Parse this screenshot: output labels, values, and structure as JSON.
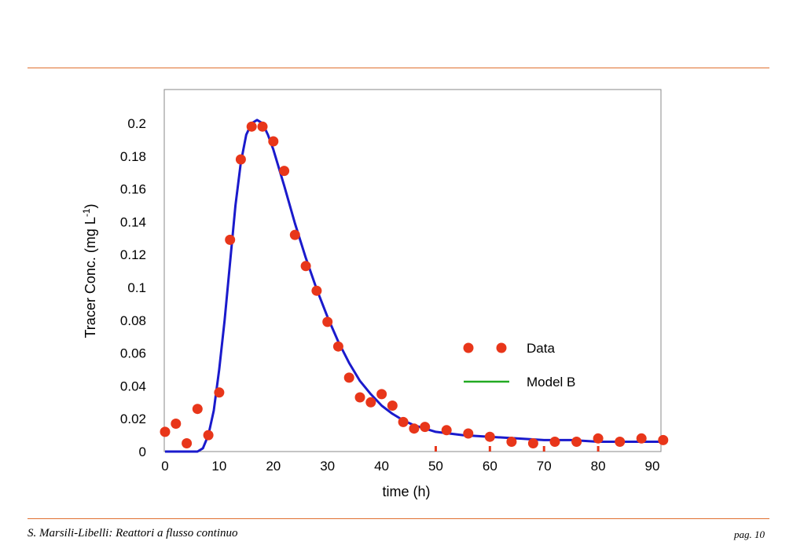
{
  "footer": {
    "left": "S. Marsili-Libelli: Reattori a flusso continuo",
    "right": "pag. 10"
  },
  "colors": {
    "rule": "#e07030",
    "data_marker": "#e8361a",
    "model_line": "#1a1acc",
    "legend_model_swatch": "#22aa22"
  },
  "chart_data": {
    "type": "scatter",
    "xlabel": "time (h)",
    "ylabel": "Tracer Conc. (mg L-1)",
    "xlim": [
      0,
      92
    ],
    "ylim": [
      0,
      0.22
    ],
    "x_ticks": [
      0,
      10,
      20,
      30,
      40,
      50,
      60,
      70,
      80,
      90
    ],
    "y_ticks": [
      0,
      0.02,
      0.04,
      0.06,
      0.08,
      0.1,
      0.12,
      0.14,
      0.16,
      0.18,
      0.2
    ],
    "x_tick_labels": [
      "0",
      "10",
      "20",
      "30",
      "40",
      "50",
      "60",
      "70",
      "80",
      "90"
    ],
    "y_tick_labels": [
      "0",
      "0.02",
      "0.04",
      "0.06",
      "0.08",
      "0.1",
      "0.12",
      "0.14",
      "0.16",
      "0.18",
      "0.2"
    ],
    "legend": {
      "position": "right-center",
      "entries": [
        "Data",
        "Model B"
      ]
    },
    "series": [
      {
        "name": "Data",
        "kind": "markers",
        "x": [
          0,
          2,
          4,
          6,
          8,
          10,
          12,
          14,
          16,
          18,
          20,
          22,
          24,
          26,
          28,
          30,
          32,
          34,
          36,
          38,
          40,
          42,
          44,
          46,
          48,
          52,
          56,
          60,
          64,
          68,
          72,
          76,
          80,
          84,
          88,
          92
        ],
        "y": [
          0.012,
          0.017,
          0.005,
          0.026,
          0.01,
          0.036,
          0.129,
          0.178,
          0.198,
          0.198,
          0.189,
          0.171,
          0.132,
          0.113,
          0.098,
          0.079,
          0.064,
          0.045,
          0.033,
          0.03,
          0.035,
          0.028,
          0.018,
          0.014,
          0.015,
          0.013,
          0.011,
          0.009,
          0.006,
          0.005,
          0.006,
          0.006,
          0.008,
          0.006,
          0.008,
          0.007
        ]
      },
      {
        "name": "Model B",
        "kind": "line",
        "x": [
          0,
          6,
          7,
          8,
          9,
          10,
          11,
          12,
          13,
          14,
          15,
          16,
          17,
          18,
          19,
          20,
          21,
          22,
          24,
          26,
          28,
          30,
          32,
          34,
          36,
          38,
          40,
          42,
          44,
          46,
          48,
          50,
          55,
          60,
          65,
          70,
          75,
          80,
          85,
          92
        ],
        "y": [
          0,
          0,
          0.002,
          0.01,
          0.025,
          0.05,
          0.08,
          0.115,
          0.15,
          0.176,
          0.193,
          0.2,
          0.202,
          0.2,
          0.193,
          0.184,
          0.173,
          0.162,
          0.139,
          0.118,
          0.099,
          0.082,
          0.067,
          0.054,
          0.043,
          0.035,
          0.028,
          0.023,
          0.019,
          0.016,
          0.014,
          0.012,
          0.01,
          0.009,
          0.008,
          0.007,
          0.007,
          0.006,
          0.006,
          0.006
        ]
      }
    ]
  }
}
